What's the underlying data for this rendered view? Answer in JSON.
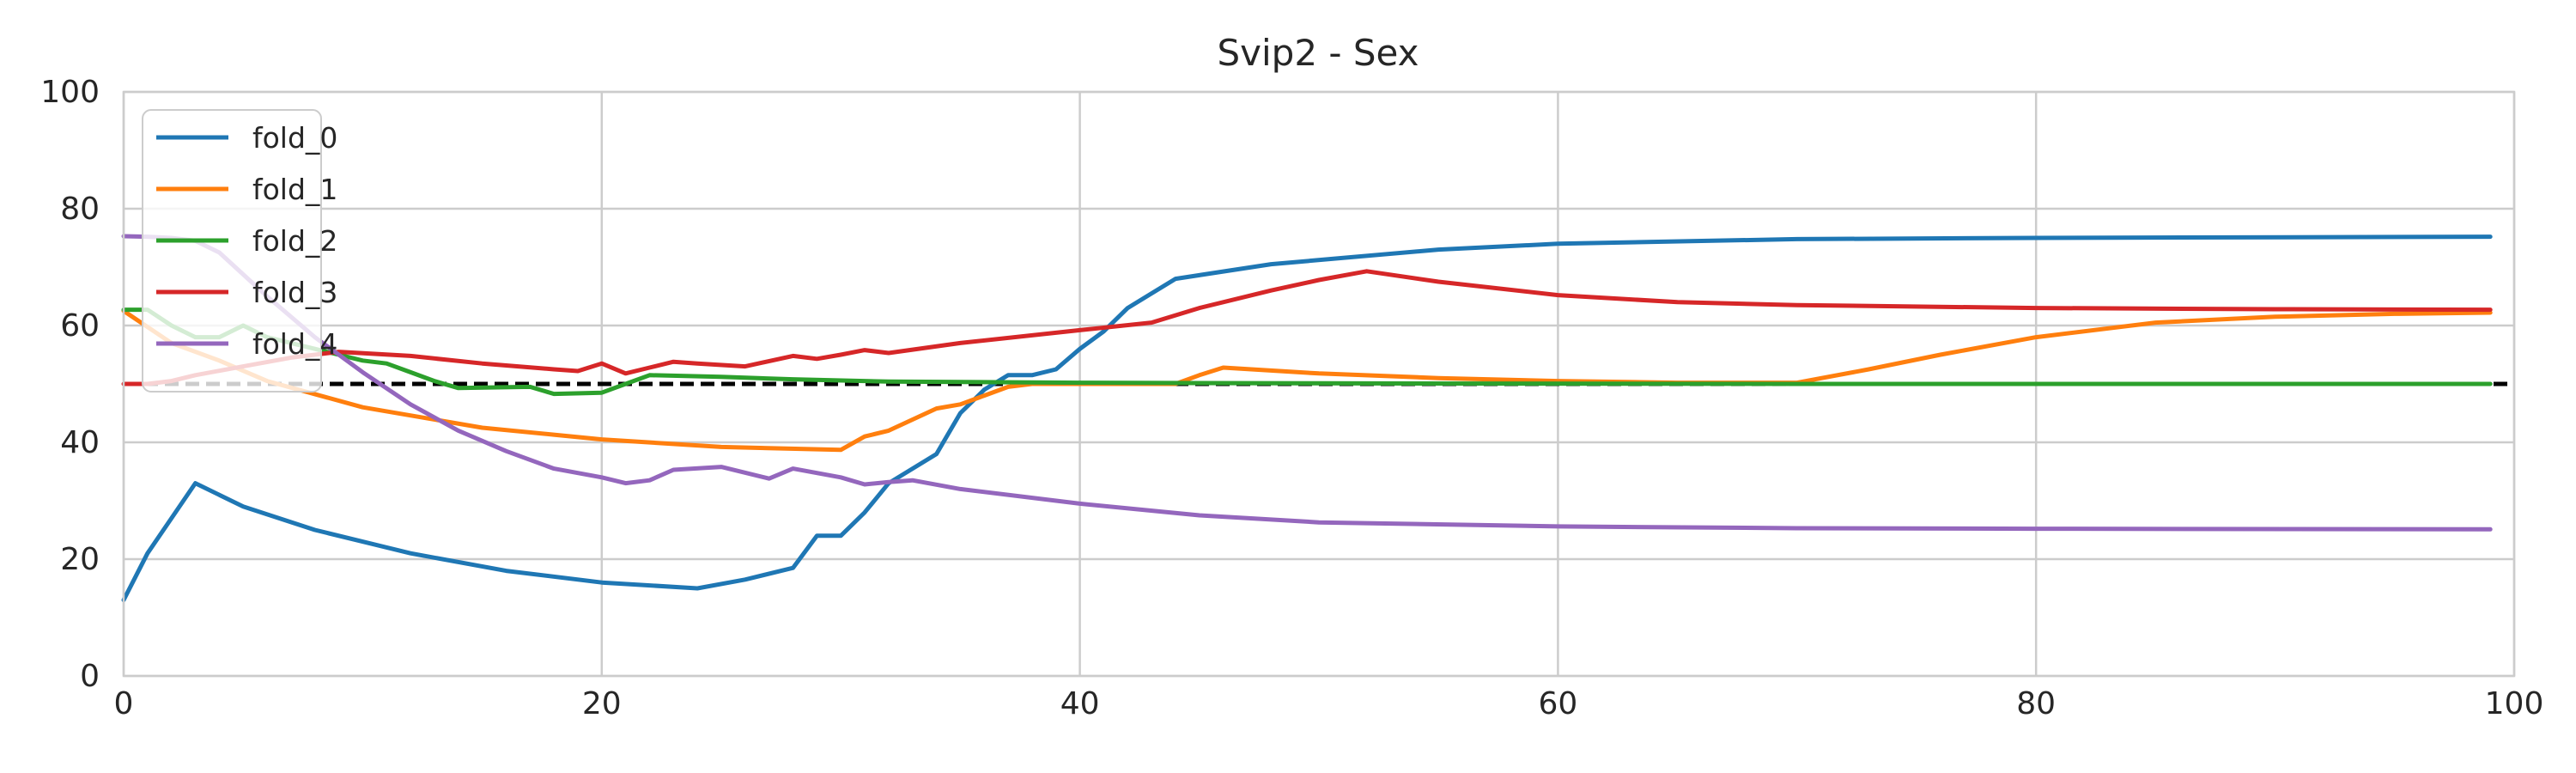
{
  "chart_data": {
    "type": "line",
    "title": "Svip2 - Sex",
    "xlabel": "",
    "ylabel": "",
    "xlim": [
      0,
      100
    ],
    "ylim": [
      0,
      100
    ],
    "xticks": [
      0,
      20,
      40,
      60,
      80,
      100
    ],
    "yticks": [
      0,
      20,
      40,
      60,
      80,
      100
    ],
    "grid": true,
    "legend_position": "top-left",
    "reference_line": {
      "y": 50,
      "style": "dashed",
      "color": "#000000"
    },
    "series": [
      {
        "name": "fold_0",
        "color": "#1f77b4",
        "points": [
          [
            0,
            13
          ],
          [
            1,
            21
          ],
          [
            2,
            27
          ],
          [
            3,
            33
          ],
          [
            5,
            29
          ],
          [
            8,
            25
          ],
          [
            12,
            21
          ],
          [
            16,
            18
          ],
          [
            20,
            16
          ],
          [
            24,
            15
          ],
          [
            26,
            16.5
          ],
          [
            28,
            18.5
          ],
          [
            29,
            24
          ],
          [
            30,
            24
          ],
          [
            31,
            28
          ],
          [
            32,
            33
          ],
          [
            34,
            38
          ],
          [
            35,
            45
          ],
          [
            36,
            49
          ],
          [
            37,
            51.5
          ],
          [
            38,
            51.5
          ],
          [
            39,
            52.5
          ],
          [
            40,
            56
          ],
          [
            41,
            59
          ],
          [
            42,
            63
          ],
          [
            43,
            65.5
          ],
          [
            44,
            68
          ],
          [
            48,
            70.5
          ],
          [
            55,
            73
          ],
          [
            60,
            74
          ],
          [
            70,
            74.8
          ],
          [
            80,
            75
          ],
          [
            99,
            75.2
          ]
        ]
      },
      {
        "name": "fold_1",
        "color": "#ff7f0e",
        "points": [
          [
            0,
            62.5
          ],
          [
            2,
            57
          ],
          [
            4,
            54
          ],
          [
            6,
            50.5
          ],
          [
            10,
            46
          ],
          [
            15,
            42.5
          ],
          [
            20,
            40.5
          ],
          [
            25,
            39.2
          ],
          [
            30,
            38.7
          ],
          [
            31,
            41
          ],
          [
            32,
            42
          ],
          [
            34,
            45.8
          ],
          [
            35,
            46.5
          ],
          [
            36,
            48
          ],
          [
            37,
            49.5
          ],
          [
            38,
            50
          ],
          [
            44,
            50
          ],
          [
            45,
            51.5
          ],
          [
            46,
            52.8
          ],
          [
            50,
            51.8
          ],
          [
            55,
            51
          ],
          [
            60,
            50.5
          ],
          [
            65,
            50.2
          ],
          [
            70,
            50.2
          ],
          [
            73,
            52.5
          ],
          [
            76,
            55
          ],
          [
            80,
            58
          ],
          [
            85,
            60.5
          ],
          [
            90,
            61.5
          ],
          [
            95,
            62
          ],
          [
            99,
            62.2
          ]
        ]
      },
      {
        "name": "fold_2",
        "color": "#2ca02c",
        "points": [
          [
            0,
            62.7
          ],
          [
            1,
            62.7
          ],
          [
            2,
            60
          ],
          [
            3,
            58
          ],
          [
            4,
            58
          ],
          [
            5,
            60
          ],
          [
            6,
            58
          ],
          [
            8,
            56
          ],
          [
            10,
            54
          ],
          [
            11,
            53.5
          ],
          [
            12,
            52
          ],
          [
            13,
            50.5
          ],
          [
            14,
            49.3
          ],
          [
            17,
            49.5
          ],
          [
            18,
            48.3
          ],
          [
            20,
            48.5
          ],
          [
            21,
            50
          ],
          [
            22,
            51.5
          ],
          [
            25,
            51.2
          ],
          [
            28,
            50.8
          ],
          [
            32,
            50.4
          ],
          [
            40,
            50.2
          ],
          [
            50,
            50.1
          ],
          [
            70,
            50
          ],
          [
            99,
            50
          ]
        ]
      },
      {
        "name": "fold_3",
        "color": "#d62728",
        "points": [
          [
            0,
            50
          ],
          [
            1,
            50
          ],
          [
            2,
            50.5
          ],
          [
            3,
            51.5
          ],
          [
            5,
            53
          ],
          [
            7,
            54.5
          ],
          [
            9,
            55.5
          ],
          [
            12,
            54.8
          ],
          [
            15,
            53.5
          ],
          [
            18,
            52.5
          ],
          [
            19,
            52.2
          ],
          [
            20,
            53.5
          ],
          [
            21,
            51.8
          ],
          [
            22,
            52.8
          ],
          [
            23,
            53.8
          ],
          [
            24,
            53.5
          ],
          [
            26,
            53
          ],
          [
            28,
            54.8
          ],
          [
            29,
            54.3
          ],
          [
            30,
            55
          ],
          [
            31,
            55.8
          ],
          [
            32,
            55.3
          ],
          [
            35,
            57
          ],
          [
            40,
            59.2
          ],
          [
            43,
            60.5
          ],
          [
            45,
            63
          ],
          [
            48,
            66
          ],
          [
            50,
            67.8
          ],
          [
            52,
            69.3
          ],
          [
            55,
            67.5
          ],
          [
            60,
            65.2
          ],
          [
            65,
            64
          ],
          [
            70,
            63.5
          ],
          [
            80,
            63
          ],
          [
            90,
            62.8
          ],
          [
            99,
            62.7
          ]
        ]
      },
      {
        "name": "fold_4",
        "color": "#9467bd",
        "points": [
          [
            0,
            75.3
          ],
          [
            1,
            75.2
          ],
          [
            2,
            75
          ],
          [
            3,
            74.5
          ],
          [
            4,
            72.5
          ],
          [
            6,
            65
          ],
          [
            8,
            58
          ],
          [
            10,
            52
          ],
          [
            12,
            46.5
          ],
          [
            14,
            42
          ],
          [
            16,
            38.5
          ],
          [
            18,
            35.5
          ],
          [
            20,
            34
          ],
          [
            21,
            33
          ],
          [
            22,
            33.5
          ],
          [
            23,
            35.3
          ],
          [
            25,
            35.8
          ],
          [
            27,
            33.8
          ],
          [
            28,
            35.5
          ],
          [
            30,
            34
          ],
          [
            31,
            32.8
          ],
          [
            32,
            33.2
          ],
          [
            33,
            33.5
          ],
          [
            35,
            32
          ],
          [
            40,
            29.5
          ],
          [
            45,
            27.5
          ],
          [
            50,
            26.3
          ],
          [
            60,
            25.6
          ],
          [
            70,
            25.3
          ],
          [
            80,
            25.2
          ],
          [
            99,
            25.1
          ]
        ]
      }
    ]
  }
}
